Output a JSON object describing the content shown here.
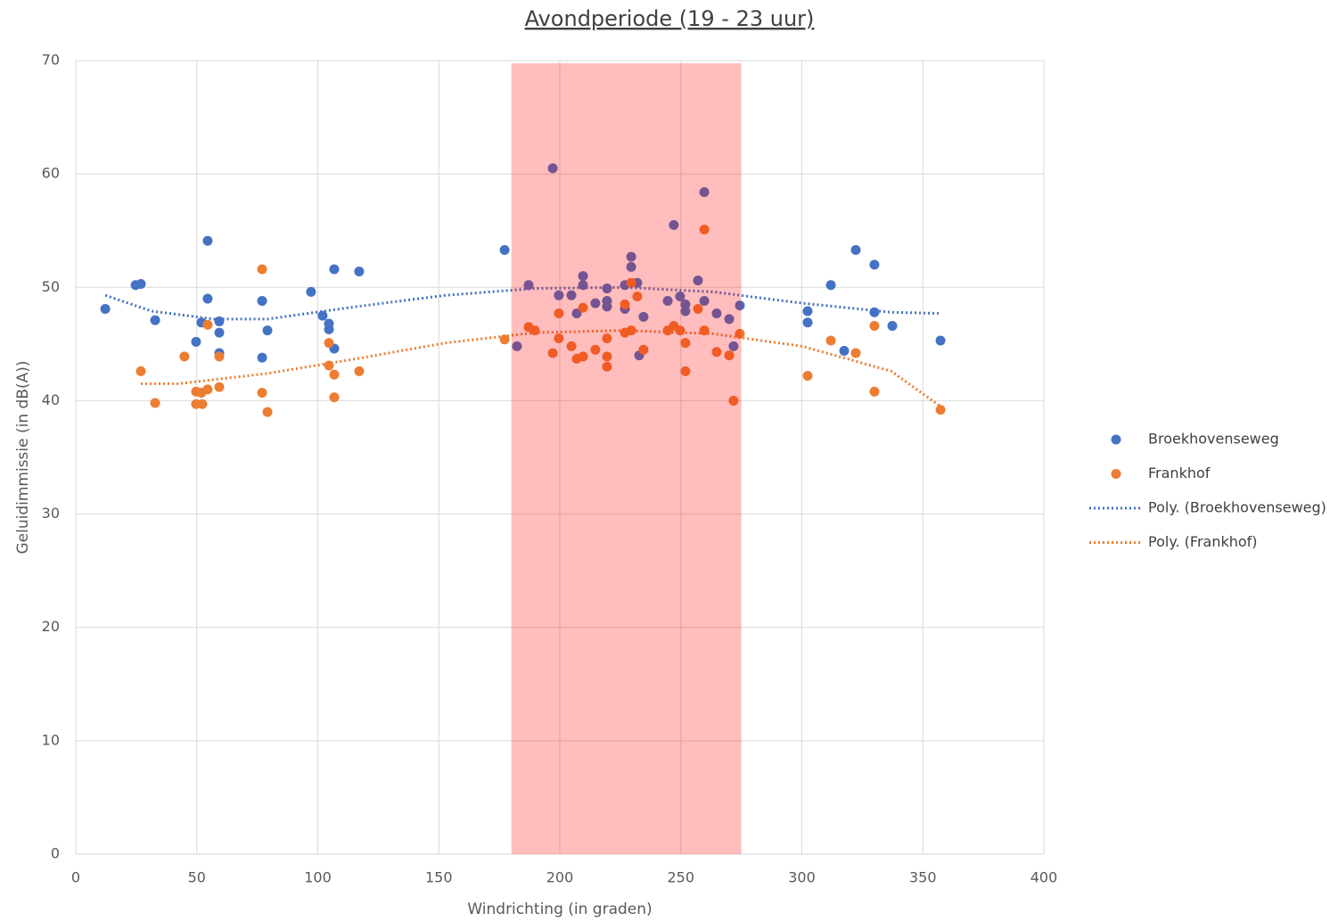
{
  "chart_data": {
    "type": "scatter",
    "title": "Avondperiode (19 - 23 uur)",
    "x_label": "Windrichting (in graden)",
    "y_label": "Geluidimmissie (in dB(A))",
    "xlim": [
      0,
      400
    ],
    "xticks": [
      0,
      50,
      100,
      150,
      200,
      250,
      300,
      350,
      400
    ],
    "ylim": [
      0,
      70
    ],
    "yticks": [
      0,
      10,
      20,
      30,
      40,
      50,
      60,
      70
    ],
    "grid": true,
    "shaded_band": {
      "x": [
        180,
        275
      ],
      "color": "rgba(255,0,0,0.26)"
    },
    "legend": "right",
    "series": [
      {
        "name": "Broekhovenseweg",
        "color": "#4472c4",
        "style": "markers",
        "x": [
          12.2,
          24.7,
          26.9,
          32.8,
          49.7,
          51.9,
          54.5,
          54.5,
          59.3,
          59.3,
          59.3,
          77.0,
          77.0,
          79.2,
          97.2,
          102.0,
          104.6,
          104.6,
          106.8,
          106.8,
          117.1,
          177.2,
          182.3,
          187.1,
          197.1,
          199.6,
          204.8,
          207.0,
          209.6,
          209.6,
          214.7,
          219.5,
          219.5,
          219.5,
          226.9,
          226.9,
          229.5,
          229.5,
          232.0,
          232.8,
          234.6,
          244.6,
          247.1,
          249.7,
          251.9,
          251.9,
          257.1,
          259.7,
          259.7,
          264.8,
          270.0,
          271.8,
          274.4,
          302.4,
          302.4,
          312.0,
          317.5,
          322.3,
          330.0,
          330.0,
          337.4,
          357.3
        ],
        "values": [
          48.1,
          50.2,
          50.3,
          47.1,
          45.2,
          46.9,
          54.1,
          49.0,
          47.0,
          46.0,
          44.2,
          48.8,
          43.8,
          46.2,
          49.6,
          47.5,
          46.8,
          46.3,
          51.6,
          44.6,
          51.4,
          53.3,
          44.8,
          50.2,
          60.5,
          49.3,
          49.3,
          47.7,
          51.0,
          50.2,
          48.6,
          49.9,
          48.8,
          48.3,
          50.2,
          48.1,
          52.7,
          51.8,
          50.4,
          44.0,
          47.4,
          48.8,
          55.5,
          49.2,
          48.5,
          47.9,
          50.6,
          58.4,
          48.8,
          47.7,
          47.2,
          44.8,
          48.4,
          47.9,
          46.9,
          50.2,
          44.4,
          53.3,
          52.0,
          47.8,
          46.6,
          45.3
        ]
      },
      {
        "name": "Frankhof",
        "color": "#ed7d31",
        "style": "markers",
        "x": [
          26.9,
          32.8,
          44.9,
          49.7,
          49.7,
          51.9,
          52.3,
          54.5,
          54.5,
          59.3,
          59.3,
          77.0,
          77.0,
          79.2,
          104.6,
          104.6,
          106.8,
          106.8,
          117.1,
          177.2,
          187.1,
          189.7,
          197.1,
          199.6,
          199.6,
          204.8,
          207.0,
          209.6,
          209.6,
          214.7,
          219.5,
          219.5,
          219.5,
          226.9,
          226.9,
          229.5,
          229.5,
          232.0,
          234.6,
          244.6,
          247.1,
          249.7,
          251.9,
          251.9,
          257.1,
          259.7,
          259.7,
          264.8,
          270.0,
          271.8,
          274.4,
          302.4,
          312.0,
          322.3,
          330.0,
          330.0,
          357.3
        ],
        "values": [
          42.6,
          39.8,
          43.9,
          40.8,
          39.7,
          40.7,
          39.7,
          41.0,
          46.7,
          43.9,
          41.2,
          51.6,
          40.7,
          39.0,
          45.1,
          43.1,
          42.3,
          40.3,
          42.6,
          45.4,
          46.5,
          46.2,
          44.2,
          47.7,
          45.5,
          44.8,
          43.7,
          48.2,
          43.9,
          44.5,
          45.5,
          43.9,
          43.0,
          48.5,
          46.0,
          46.2,
          50.4,
          49.2,
          44.5,
          46.2,
          46.6,
          46.2,
          45.1,
          42.6,
          48.1,
          55.1,
          46.2,
          44.3,
          44.0,
          40.0,
          45.9,
          42.2,
          45.3,
          44.2,
          46.6,
          40.8,
          39.2
        ]
      },
      {
        "name": "Poly. (Broekhovenseweg)",
        "color": "#4472c4",
        "style": "dotted",
        "x": [
          12.2,
          31.3,
          57.1,
          79.2,
          116,
          152.9,
          189.7,
          226.5,
          263.4,
          300.2,
          337.0,
          356.5
        ],
        "values": [
          49.3,
          47.9,
          47.2,
          47.2,
          48.3,
          49.3,
          49.9,
          50.0,
          49.6,
          48.6,
          47.8,
          47.7
        ]
      },
      {
        "name": "Poly. (Frankhof)",
        "color": "#ed7d31",
        "style": "dotted",
        "x": [
          26.9,
          42.4,
          79.2,
          116,
          152.9,
          189.7,
          226.5,
          263.4,
          300.2,
          337.0,
          357.3
        ],
        "values": [
          41.5,
          41.5,
          42.4,
          43.7,
          45.1,
          46.0,
          46.2,
          45.9,
          44.8,
          42.6,
          39.5
        ]
      }
    ]
  }
}
